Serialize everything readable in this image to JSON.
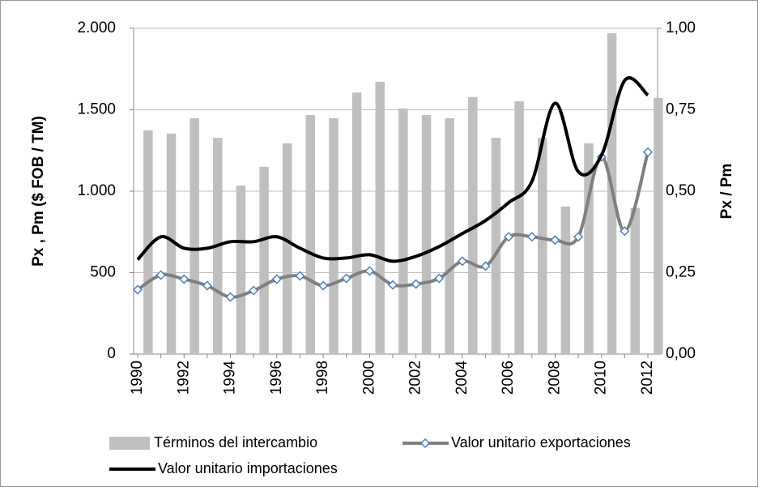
{
  "chart_data": {
    "type": "combo",
    "y_label": "Px , Pm ($ FOB / TM)",
    "y2_label": "Px / Pm",
    "categories": [
      "1990",
      null,
      "1992",
      null,
      "1994",
      null,
      "1996",
      null,
      "1998",
      null,
      "2000",
      null,
      "2002",
      null,
      "2004",
      null,
      "2006",
      null,
      "2008",
      null,
      "2010",
      null,
      "2012"
    ],
    "ylim": [
      0,
      2000
    ],
    "yticks": [
      {
        "value": 0,
        "label": "0"
      },
      {
        "value": 500,
        "label": "500"
      },
      {
        "value": 1000,
        "label": "1.000"
      },
      {
        "value": 1500,
        "label": "1.500"
      },
      {
        "value": 2000,
        "label": "2.000"
      }
    ],
    "y2lim": [
      0,
      1
    ],
    "y2ticks": [
      {
        "value": 0,
        "label": "0,00"
      },
      {
        "value": 0.25,
        "label": "0,25"
      },
      {
        "value": 0.5,
        "label": "0,50"
      },
      {
        "value": 0.75,
        "label": "0,75"
      },
      {
        "value": 1,
        "label": "1,00"
      }
    ],
    "grid": true,
    "series": [
      {
        "name": "Términos del intercambio",
        "type": "bar",
        "axis": "y2",
        "color": "#bfbfbf",
        "values": [
          0.687,
          0.677,
          0.724,
          0.664,
          0.517,
          0.575,
          0.647,
          0.734,
          0.724,
          0.803,
          0.836,
          0.754,
          0.734,
          0.724,
          0.789,
          0.664,
          0.776,
          0.664,
          0.453,
          0.647,
          0.985,
          0.448,
          0.786
        ]
      },
      {
        "name": "Valor unitario exportaciones",
        "type": "line",
        "marker": "diamond",
        "color": "#808080",
        "marker_color": "#4f81bd",
        "values": [
          395,
          485,
          460,
          420,
          350,
          390,
          460,
          480,
          420,
          465,
          510,
          425,
          430,
          465,
          570,
          540,
          720,
          720,
          700,
          720,
          1210,
          755,
          1240
        ]
      },
      {
        "name": "Valor unitario importaciones",
        "type": "line",
        "color": "#000000",
        "values": [
          580,
          720,
          650,
          650,
          690,
          690,
          720,
          650,
          590,
          590,
          610,
          570,
          600,
          660,
          740,
          820,
          930,
          1060,
          1540,
          1120,
          1220,
          1680,
          1590
        ]
      }
    ]
  }
}
